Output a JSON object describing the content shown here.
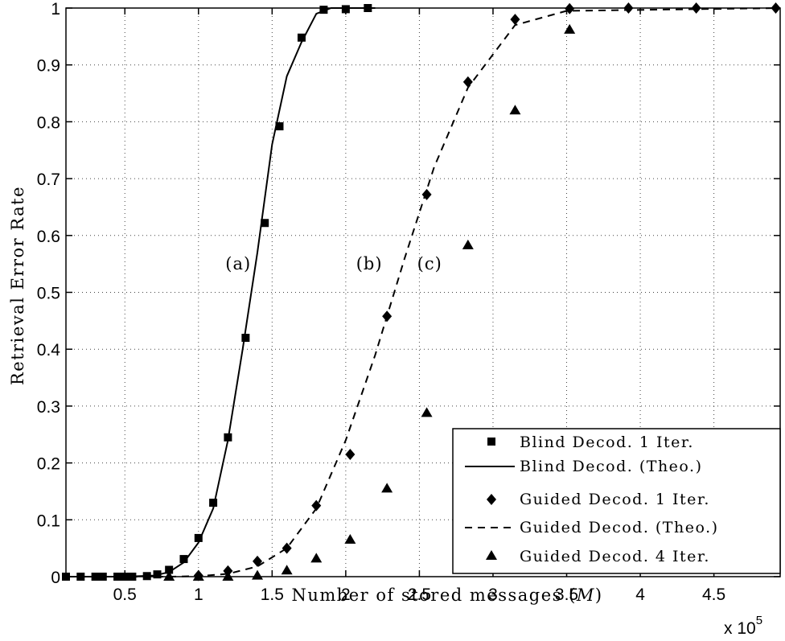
{
  "chart_data": {
    "type": "scatter",
    "title": "",
    "xlabel": "Number of stored messages (",
    "xlabel_var": "M",
    "xlabel_close": ")",
    "ylabel": "Retrieval Error Rate",
    "x_multiplier": "x 10",
    "x_multiplier_exp": "5",
    "xlim": [
      0.1,
      4.95
    ],
    "ylim": [
      0,
      1
    ],
    "x_ticks": [
      {
        "value": 0.5,
        "label": "0.5"
      },
      {
        "value": 1.0,
        "label": "1"
      },
      {
        "value": 1.5,
        "label": "1.5"
      },
      {
        "value": 2.0,
        "label": "2"
      },
      {
        "value": 2.5,
        "label": "2.5"
      },
      {
        "value": 3.0,
        "label": "3"
      },
      {
        "value": 3.5,
        "label": "3.5"
      },
      {
        "value": 4.0,
        "label": "4"
      },
      {
        "value": 4.5,
        "label": "4.5"
      }
    ],
    "y_ticks": [
      {
        "value": 0,
        "label": "0"
      },
      {
        "value": 0.1,
        "label": "0.1"
      },
      {
        "value": 0.2,
        "label": "0.2"
      },
      {
        "value": 0.3,
        "label": "0.3"
      },
      {
        "value": 0.4,
        "label": "0.4"
      },
      {
        "value": 0.5,
        "label": "0.5"
      },
      {
        "value": 0.6,
        "label": "0.6"
      },
      {
        "value": 0.7,
        "label": "0.7"
      },
      {
        "value": 0.8,
        "label": "0.8"
      },
      {
        "value": 0.9,
        "label": "0.9"
      },
      {
        "value": 1.0,
        "label": "1"
      }
    ],
    "grid": true,
    "legend_position": "bottom-right",
    "series": [
      {
        "name": "Blind Decod. 1 Iter.",
        "style": "square-markers",
        "x": [
          0.1,
          0.2,
          0.3,
          0.35,
          0.45,
          0.5,
          0.55,
          0.65,
          0.72,
          0.8,
          0.9,
          1.0,
          1.1,
          1.2,
          1.32,
          1.45,
          1.55,
          1.7,
          1.85,
          2.0,
          2.15
        ],
        "y": [
          0,
          0,
          0,
          0,
          0,
          0,
          0,
          0.001,
          0.004,
          0.012,
          0.031,
          0.068,
          0.13,
          0.245,
          0.42,
          0.622,
          0.792,
          0.948,
          0.997,
          0.998,
          1.0
        ]
      },
      {
        "name": "Blind Decod. (Theo.)",
        "style": "solid-line",
        "x": [
          0.1,
          0.5,
          0.7,
          0.8,
          0.9,
          1.0,
          1.1,
          1.2,
          1.3,
          1.4,
          1.5,
          1.6,
          1.7,
          1.8,
          1.9,
          2.2
        ],
        "y": [
          0,
          0,
          0.002,
          0.008,
          0.025,
          0.06,
          0.12,
          0.24,
          0.4,
          0.57,
          0.76,
          0.88,
          0.94,
          0.99,
          1.0,
          1.0
        ]
      },
      {
        "name": "Guided Decod. 1 Iter.",
        "style": "diamond-markers",
        "x": [
          1.0,
          1.2,
          1.4,
          1.6,
          1.8,
          2.03,
          2.28,
          2.55,
          2.83,
          3.15,
          3.52,
          3.92,
          4.38,
          4.92
        ],
        "y": [
          0.002,
          0.01,
          0.027,
          0.05,
          0.125,
          0.215,
          0.458,
          0.672,
          0.87,
          0.98,
          0.999,
          1.0,
          1.0,
          1.0
        ]
      },
      {
        "name": "Guided Decod. (Theo.)",
        "style": "dashed-line",
        "x": [
          0.1,
          0.8,
          1.0,
          1.2,
          1.4,
          1.6,
          1.8,
          2.0,
          2.2,
          2.4,
          2.6,
          2.83,
          3.15,
          3.5,
          4.95
        ],
        "y": [
          0,
          0,
          0.001,
          0.005,
          0.018,
          0.05,
          0.12,
          0.24,
          0.39,
          0.56,
          0.72,
          0.86,
          0.97,
          0.995,
          1.0
        ]
      },
      {
        "name": "Guided Decod. 4 Iter.",
        "style": "triangle-markers",
        "x": [
          0.8,
          1.0,
          1.2,
          1.4,
          1.6,
          1.8,
          2.03,
          2.28,
          2.55,
          2.83,
          3.15,
          3.52
        ],
        "y": [
          0,
          0,
          0,
          0.002,
          0.011,
          0.032,
          0.065,
          0.155,
          0.288,
          0.583,
          0.82,
          0.962
        ]
      }
    ],
    "annotations": [
      {
        "text": "(a)",
        "x": 1.27,
        "y": 0.55
      },
      {
        "text": "(b)",
        "x": 2.16,
        "y": 0.55
      },
      {
        "text": "(c)",
        "x": 2.57,
        "y": 0.55
      }
    ]
  }
}
